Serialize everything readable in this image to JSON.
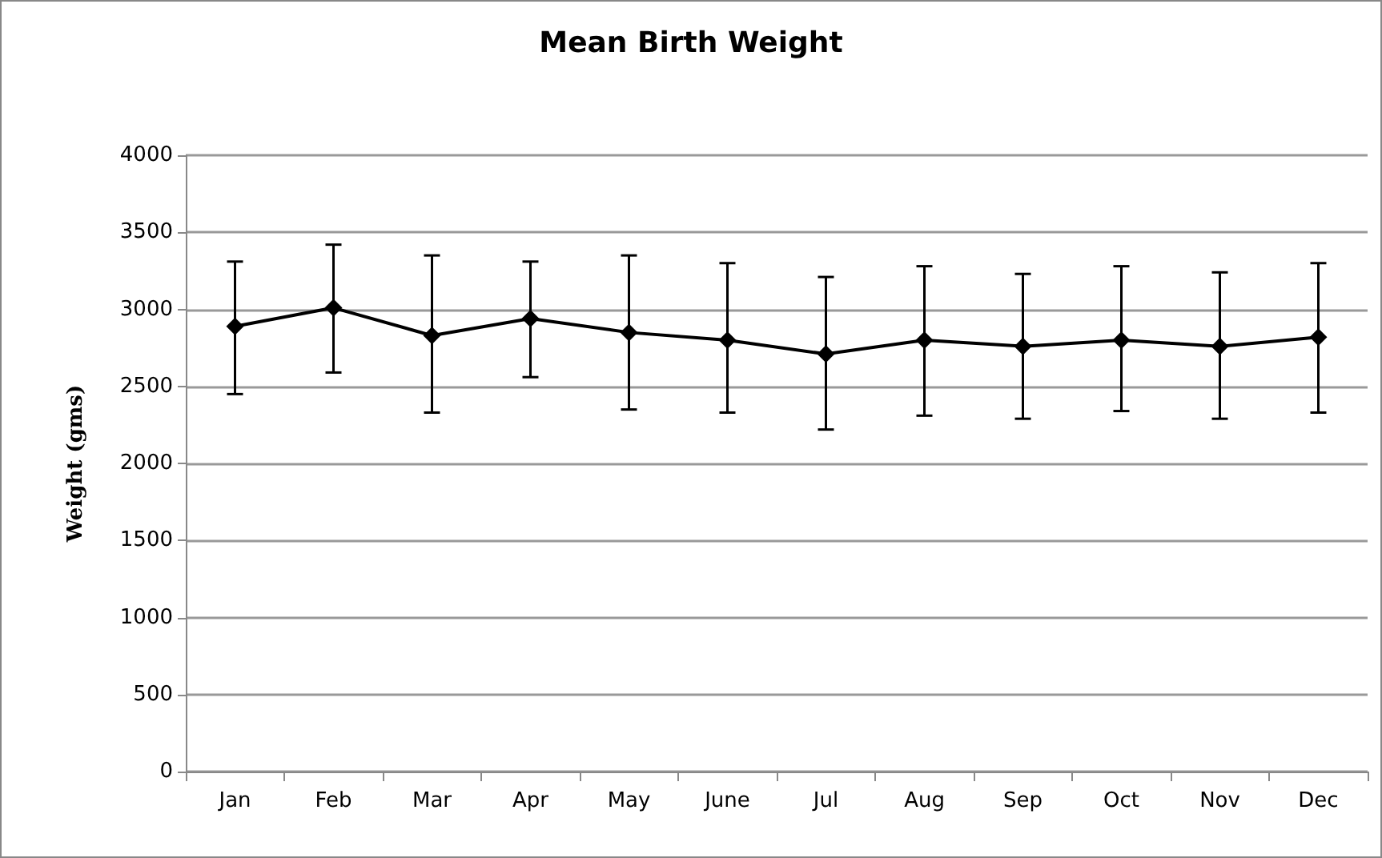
{
  "chart_data": {
    "type": "line",
    "title": "Mean Birth Weight",
    "ylabel": "Weight (gms)",
    "categories": [
      "Jan",
      "Feb",
      "Mar",
      "Apr",
      "May",
      "June",
      "Jul",
      "Aug",
      "Sep",
      "Oct",
      "Nov",
      "Dec"
    ],
    "series": [
      {
        "color": "#000000",
        "values": [
          2890,
          3010,
          2830,
          2940,
          2850,
          2800,
          2710,
          2800,
          2760,
          2800,
          2760,
          2820
        ],
        "errors": [
          [
            2450,
            3310
          ],
          [
            2590,
            3420
          ],
          [
            2330,
            3350
          ],
          [
            2560,
            3310
          ],
          [
            2350,
            3350
          ],
          [
            2330,
            3300
          ],
          [
            2220,
            3210
          ],
          [
            2310,
            3280
          ],
          [
            2290,
            3230
          ],
          [
            2340,
            3280
          ],
          [
            2290,
            3240
          ],
          [
            2330,
            3300
          ]
        ]
      }
    ],
    "ylim": [
      0,
      4000
    ],
    "yticks": [
      0,
      500,
      1000,
      1500,
      2000,
      2500,
      3000,
      3500,
      4000
    ],
    "grid": "y",
    "marker": "diamond",
    "line_style": "solid"
  }
}
